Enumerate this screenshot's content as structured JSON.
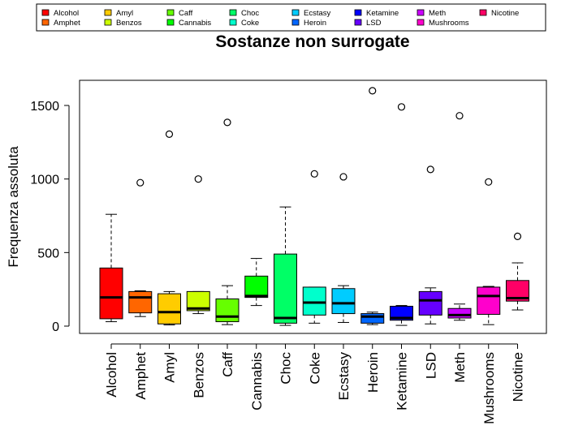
{
  "chart_data": {
    "type": "boxplot",
    "title": "Sostanze non surrogate",
    "ylabel": "Frequenza assoluta",
    "xlabel": "",
    "ylim": [
      -60,
      1660
    ],
    "yticks": [
      0,
      500,
      1000,
      1500
    ],
    "ytick_labels": [
      "0",
      "500",
      "1000",
      "1500"
    ],
    "grid": false,
    "legend_position": "top",
    "categories": [
      "Alcohol",
      "Amphet",
      "Amyl",
      "Benzos",
      "Caff",
      "Cannabis",
      "Choc",
      "Coke",
      "Ecstasy",
      "Heroin",
      "Ketamine",
      "LSD",
      "Meth",
      "Mushrooms",
      "Nicotine"
    ],
    "colors": [
      "#FF0000",
      "#FF6600",
      "#FFCC00",
      "#CCFF00",
      "#66FF00",
      "#00FF00",
      "#00FF66",
      "#00FFCC",
      "#00CCFF",
      "#0066FF",
      "#0000FF",
      "#6600FF",
      "#CC00FF",
      "#FF00CC",
      "#FF0066"
    ],
    "boxes": [
      {
        "name": "Alcohol",
        "min": 30,
        "q1": 50,
        "median": 195,
        "q3": 395,
        "max": 760,
        "outliers": []
      },
      {
        "name": "Amphet",
        "min": 65,
        "q1": 90,
        "median": 195,
        "q3": 235,
        "max": 240,
        "outliers": [
          975
        ]
      },
      {
        "name": "Amyl",
        "min": 8,
        "q1": 15,
        "median": 95,
        "q3": 220,
        "max": 235,
        "outliers": [
          1305
        ]
      },
      {
        "name": "Benzos",
        "min": 85,
        "q1": 105,
        "median": 120,
        "q3": 235,
        "max": 235,
        "outliers": [
          1000
        ]
      },
      {
        "name": "Caff",
        "min": 10,
        "q1": 30,
        "median": 65,
        "q3": 185,
        "max": 275,
        "outliers": [
          1385
        ]
      },
      {
        "name": "Cannabis",
        "min": 140,
        "q1": 195,
        "median": 205,
        "q3": 340,
        "max": 460,
        "outliers": []
      },
      {
        "name": "Choc",
        "min": 5,
        "q1": 20,
        "median": 55,
        "q3": 490,
        "max": 810,
        "outliers": []
      },
      {
        "name": "Coke",
        "min": 20,
        "q1": 75,
        "median": 160,
        "q3": 265,
        "max": 265,
        "outliers": [
          1035
        ]
      },
      {
        "name": "Ecstasy",
        "min": 25,
        "q1": 85,
        "median": 155,
        "q3": 255,
        "max": 275,
        "outliers": [
          1015
        ]
      },
      {
        "name": "Heroin",
        "min": 10,
        "q1": 20,
        "median": 65,
        "q3": 85,
        "max": 95,
        "outliers": [
          1600
        ]
      },
      {
        "name": "Ketamine",
        "min": 5,
        "q1": 40,
        "median": 55,
        "q3": 135,
        "max": 140,
        "outliers": [
          1490
        ]
      },
      {
        "name": "LSD",
        "min": 15,
        "q1": 75,
        "median": 175,
        "q3": 235,
        "max": 260,
        "outliers": [
          1065
        ]
      },
      {
        "name": "Meth",
        "min": 40,
        "q1": 55,
        "median": 75,
        "q3": 120,
        "max": 150,
        "outliers": [
          1430
        ]
      },
      {
        "name": "Mushrooms",
        "min": 10,
        "q1": 80,
        "median": 205,
        "q3": 265,
        "max": 270,
        "outliers": [
          980
        ]
      },
      {
        "name": "Nicotine",
        "min": 110,
        "q1": 170,
        "median": 190,
        "q3": 310,
        "max": 430,
        "outliers": [
          610
        ]
      }
    ]
  }
}
